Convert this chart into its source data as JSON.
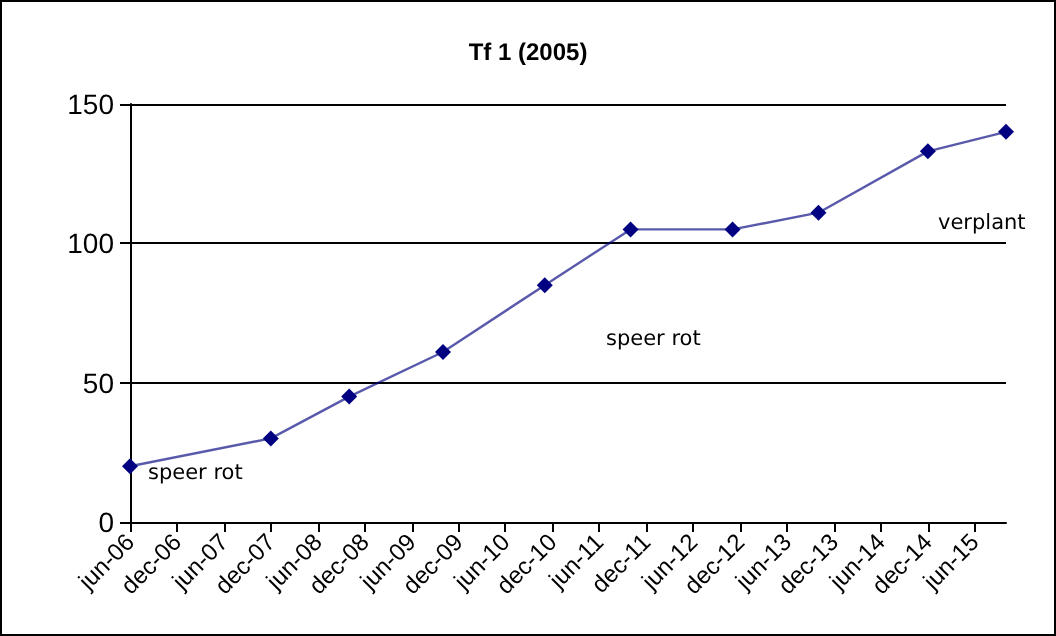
{
  "chart_data": {
    "type": "line",
    "title": "Tf 1 (2005)",
    "x": [
      "2006-06",
      "2007-12",
      "2008-10",
      "2009-10",
      "2010-11",
      "2011-10",
      "2012-11",
      "2013-10",
      "2014-12",
      "2015-10"
    ],
    "series": [
      {
        "color": "#000080",
        "values": [
          20,
          30,
          45,
          61,
          85,
          105,
          105,
          111,
          133,
          140
        ]
      }
    ],
    "xlim": [
      "2006-06",
      "2015-10"
    ],
    "xticks": [
      {
        "value": "2006-06",
        "label": "jun-06"
      },
      {
        "value": "2006-12",
        "label": "dec-06"
      },
      {
        "value": "2007-06",
        "label": "jun-07"
      },
      {
        "value": "2007-12",
        "label": "dec-07"
      },
      {
        "value": "2008-06",
        "label": "jun-08"
      },
      {
        "value": "2008-12",
        "label": "dec-08"
      },
      {
        "value": "2009-06",
        "label": "jun-09"
      },
      {
        "value": "2009-12",
        "label": "dec-09"
      },
      {
        "value": "2010-06",
        "label": "jun-10"
      },
      {
        "value": "2010-12",
        "label": "dec-10"
      },
      {
        "value": "2011-06",
        "label": "jun-11"
      },
      {
        "value": "2011-12",
        "label": "dec-11"
      },
      {
        "value": "2012-06",
        "label": "jun-12"
      },
      {
        "value": "2012-12",
        "label": "dec-12"
      },
      {
        "value": "2013-06",
        "label": "jun-13"
      },
      {
        "value": "2013-12",
        "label": "dec-13"
      },
      {
        "value": "2014-06",
        "label": "jun-14"
      },
      {
        "value": "2014-12",
        "label": "dec-14"
      },
      {
        "value": "2015-06",
        "label": "jun-15"
      }
    ],
    "ylim": [
      0,
      150
    ],
    "yticks": [
      0,
      50,
      100,
      150
    ],
    "grid": "y",
    "marker": "diamond",
    "line_style": "solid",
    "annotations": [
      "speer rot",
      "speer rot",
      "verplant"
    ]
  }
}
